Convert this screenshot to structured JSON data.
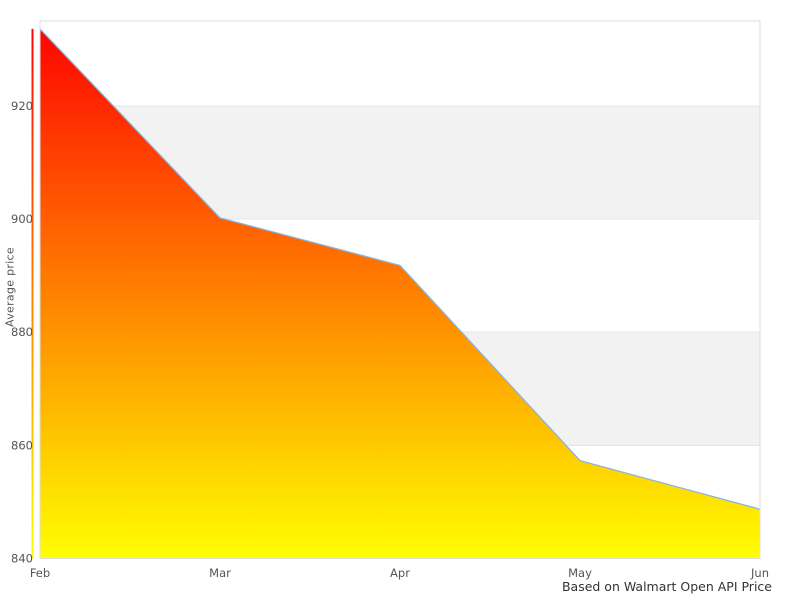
{
  "chart_data": {
    "type": "area",
    "title": "",
    "categories": [
      "Feb",
      "Mar",
      "Apr",
      "May",
      "Jun"
    ],
    "values": [
      933.6,
      900.2,
      891.8,
      857.3,
      848.7
    ],
    "series": [
      {
        "name": "Average price",
        "values": [
          933.6,
          900.2,
          891.8,
          857.3,
          848.7
        ]
      }
    ],
    "xlabel": "",
    "ylabel": "Average price",
    "ylim": [
      840,
      935
    ],
    "yticks": [
      840,
      860,
      880,
      900,
      920
    ],
    "grid": true,
    "legend": "none",
    "alternate_bands": [
      [
        860,
        880
      ],
      [
        900,
        920
      ]
    ],
    "caption": "Based on Walmart Open API Price",
    "colors": {
      "band": "#f2f2f2",
      "gridline": "#e6e6e6",
      "plot_border": "#dddddd",
      "line": "#8cb4d8",
      "gradient_top": "#ff0000",
      "gradient_bottom": "#ffff00",
      "tick_label": "#555555",
      "axis_title": "#555555",
      "caption_text": "#333333"
    }
  }
}
